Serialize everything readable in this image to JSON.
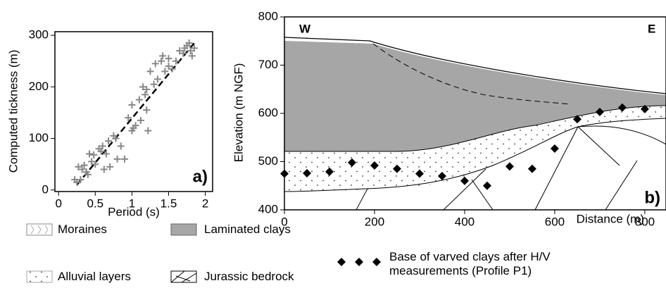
{
  "chart_data": [
    {
      "type": "scatter",
      "label": "a)",
      "xlabel": "Period (s)",
      "ylabel": "Computed tickness (m)",
      "xlim": [
        -0.05,
        2.1
      ],
      "ylim": [
        -3,
        307
      ],
      "xticks": [
        0,
        0.5,
        1,
        1.5,
        2
      ],
      "yticks": [
        0,
        100,
        200,
        300
      ],
      "series": [
        {
          "color": "#888888",
          "marker": "plus",
          "x": [
            0.22,
            0.25,
            0.27,
            0.3,
            0.32,
            0.35,
            0.38,
            0.4,
            0.42,
            0.45,
            0.48,
            0.5,
            0.55,
            0.58,
            0.6,
            0.62,
            0.65,
            0.68,
            0.7,
            0.75,
            0.78,
            0.8,
            0.85,
            0.9,
            0.95,
            1.0,
            1.0,
            1.02,
            1.05,
            1.1,
            1.12,
            1.15,
            1.18,
            1.2,
            1.2,
            1.22,
            1.25,
            1.3,
            1.32,
            1.35,
            1.4,
            1.42,
            1.45,
            1.5,
            1.5,
            1.55,
            1.6,
            1.65,
            1.7,
            1.72,
            1.75,
            1.78,
            1.8,
            1.82,
            1.85
          ],
          "values": [
            20,
            15,
            45,
            20,
            40,
            48,
            35,
            30,
            70,
            55,
            68,
            50,
            80,
            75,
            85,
            40,
            70,
            95,
            45,
            105,
            100,
            60,
            85,
            60,
            140,
            115,
            165,
            120,
            125,
            175,
            135,
            200,
            185,
            155,
            195,
            115,
            230,
            205,
            245,
            215,
            250,
            260,
            230,
            255,
            240,
            235,
            250,
            270,
            265,
            275,
            280,
            285,
            270,
            260,
            275
          ]
        }
      ],
      "trend": {
        "x": [
          0.25,
          1.85
        ],
        "values": [
          10,
          285
        ],
        "color": "#000000"
      }
    },
    {
      "type": "scatter",
      "label": "b)",
      "west": "W",
      "east": "E",
      "xlabel": "Distance (m)",
      "ylabel": "Elevation (m NGF)",
      "xlim": [
        0,
        847
      ],
      "ylim": [
        400,
        800
      ],
      "xticks": [
        0,
        200,
        400,
        600,
        800
      ],
      "yticks": [
        400,
        500,
        600,
        700,
        800
      ],
      "series": [
        {
          "name": "Base of varved clays after H/V measurements (Profile P1)",
          "color": "#000000",
          "marker": "diamond",
          "x": [
            0,
            50,
            100,
            150,
            200,
            250,
            300,
            350,
            400,
            450,
            500,
            550,
            600,
            650,
            700,
            750,
            800
          ],
          "values": [
            475,
            476,
            479,
            498,
            492,
            485,
            475,
            470,
            460,
            450,
            490,
            485,
            527,
            588,
            603,
            612,
            609
          ]
        }
      ],
      "legend": [
        "Moraines",
        "Laminated clays",
        "Alluvial layers",
        "Jurassic bedrock"
      ],
      "layer_colors": {
        "Laminated clays": "#a6a6a6"
      }
    }
  ]
}
